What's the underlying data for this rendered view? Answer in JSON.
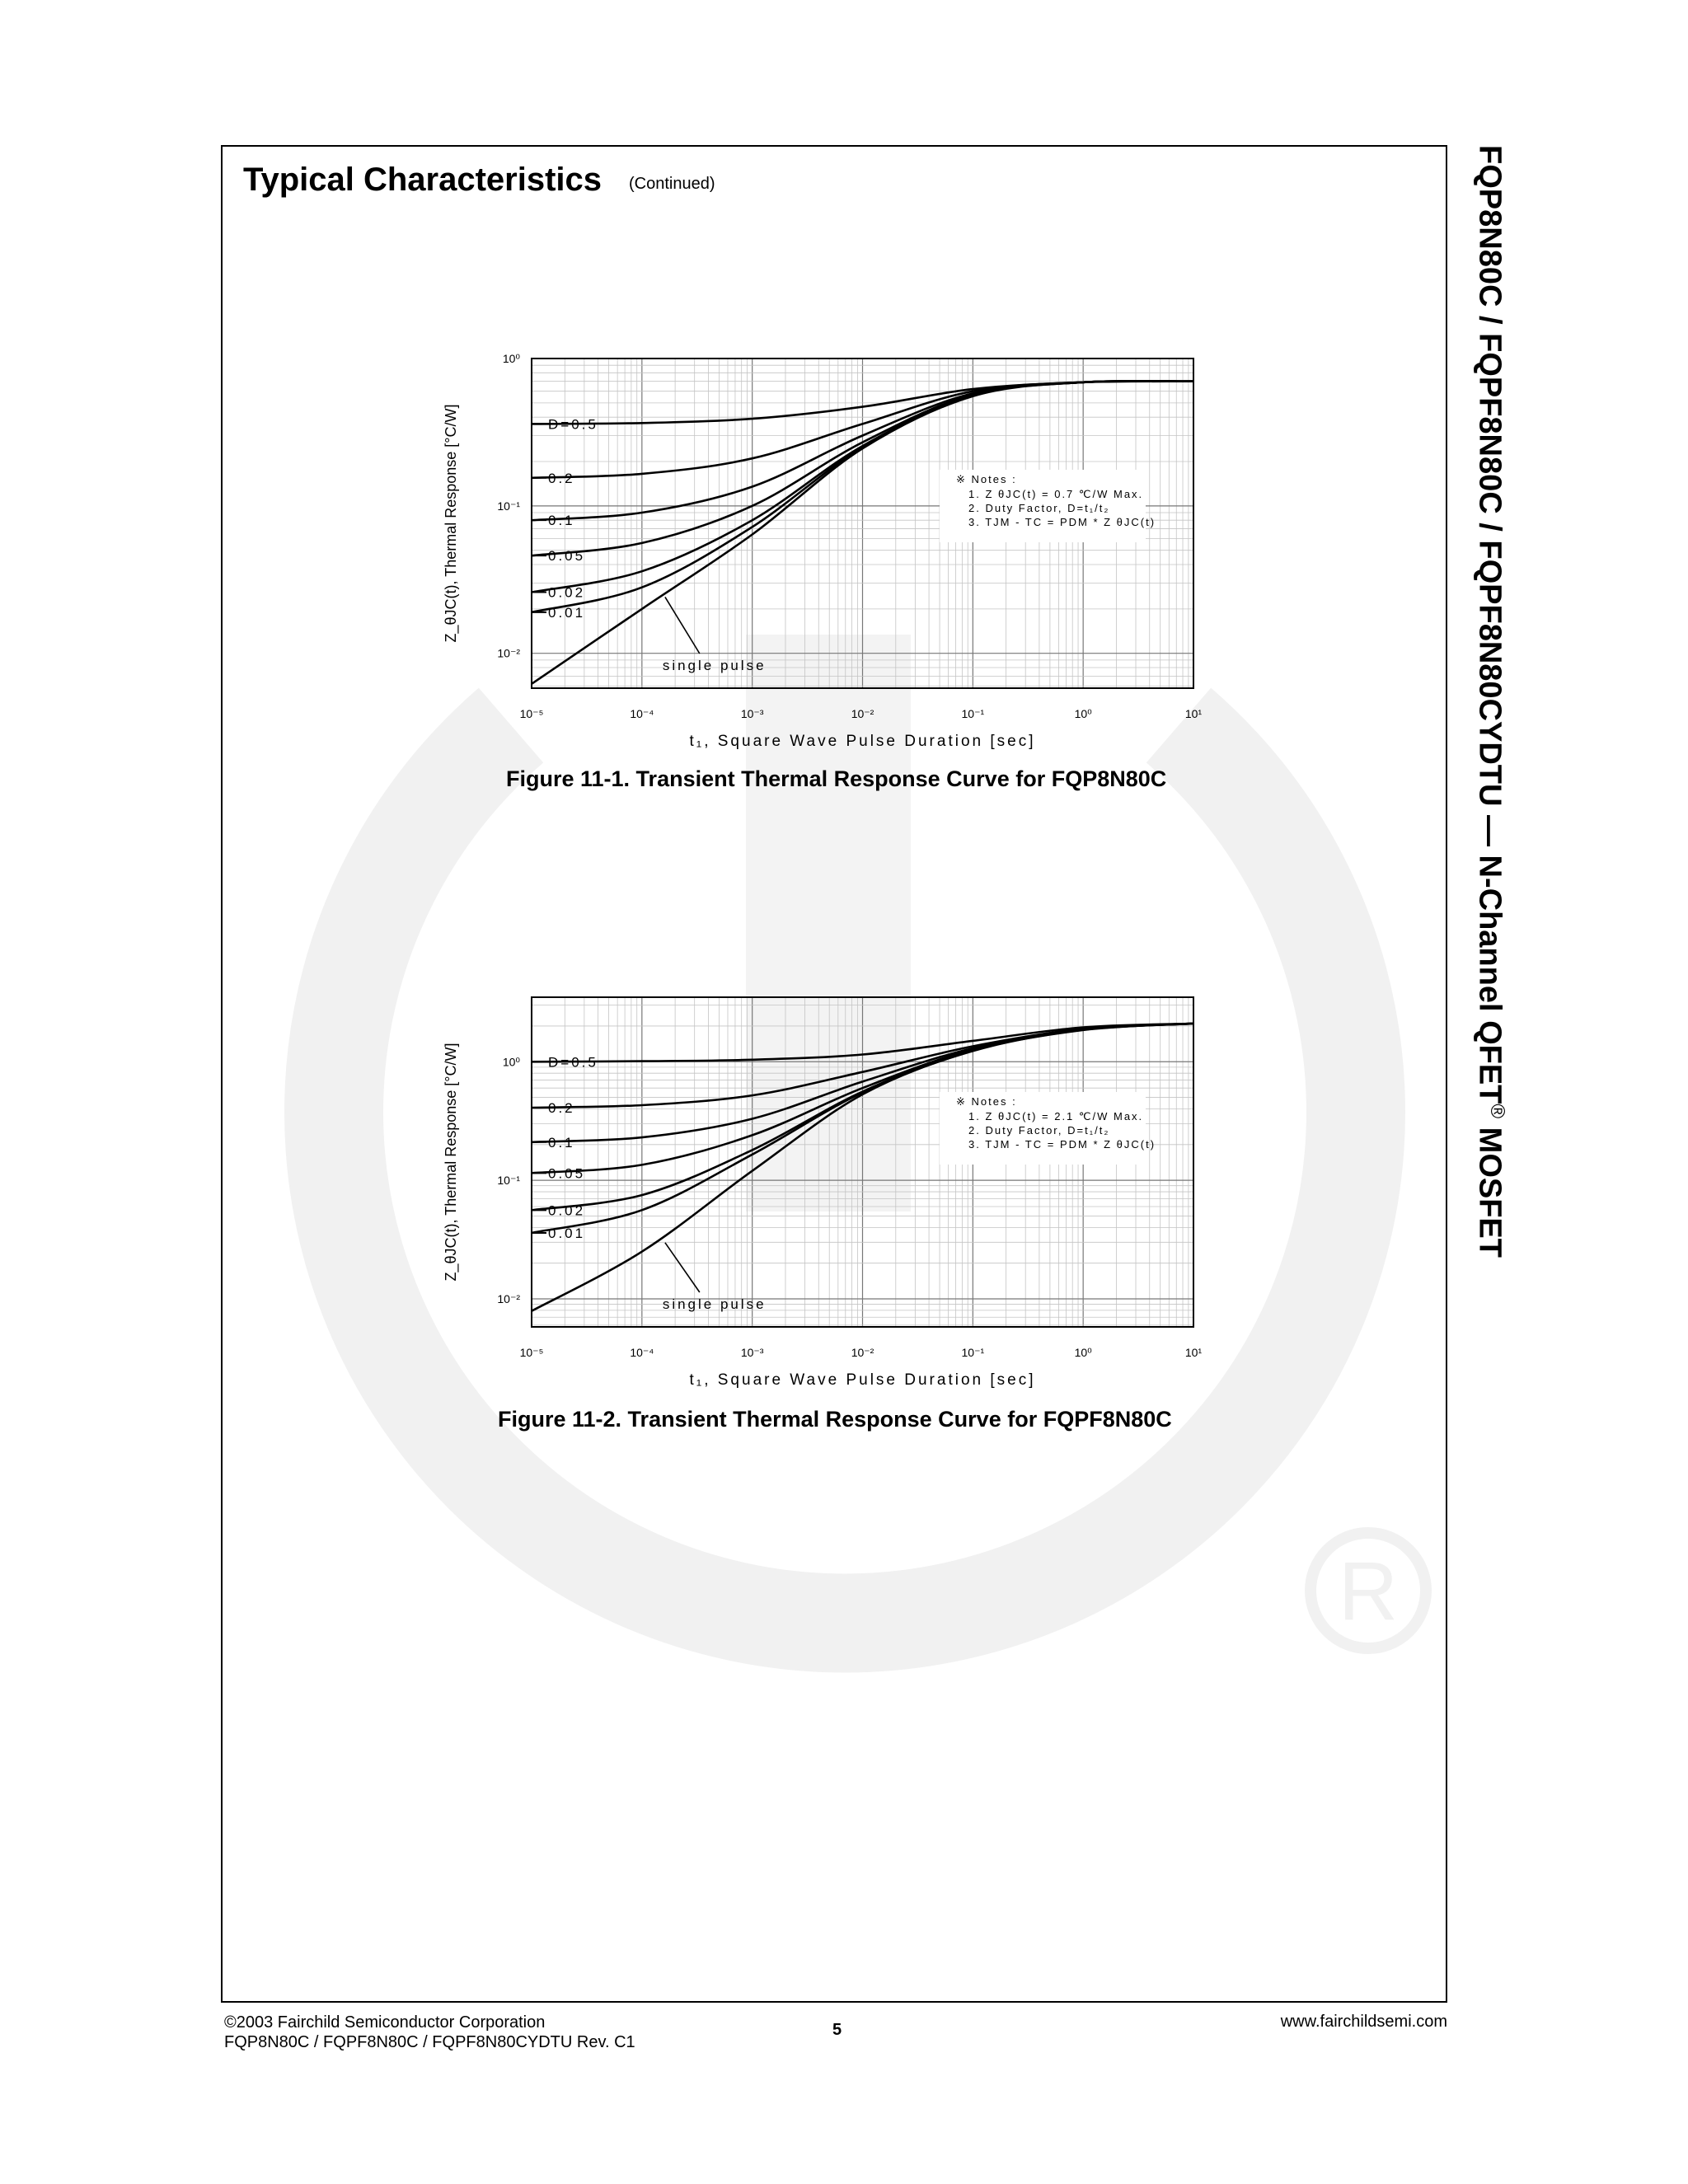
{
  "page": {
    "section_title": "Typical Characteristics",
    "section_subtitle": "(Continued)",
    "side_title": "FQP8N80C / FQPF8N80C / FQPF8N80CYDTU — N-Channel QFET",
    "side_title_mark": "®",
    "side_title_suffix": " MOSFET",
    "footer": {
      "copyright": "©2003 Fairchild Semiconductor Corporation",
      "doc_id": "FQP8N80C / FQPF8N80C / FQPF8N80CYDTU Rev. C1",
      "page_number": "5",
      "website": "www.fairchildsemi.com"
    }
  },
  "chart_data": [
    {
      "type": "line",
      "caption": "Figure 11-1. Transient Thermal Response Curve for FQP8N80C",
      "xlabel": "t₁, Square Wave Pulse Duration [sec]",
      "ylabel": "Z_θJC(t), Thermal Response [°C/W]",
      "x_scale": "log",
      "y_scale": "log",
      "xlim": [
        1e-05,
        10
      ],
      "ylim": [
        0.0058,
        1.0
      ],
      "x_ticks": [
        1e-05,
        0.0001,
        0.001,
        0.01,
        0.1,
        1,
        10
      ],
      "x_tick_labels": [
        "10⁻⁵",
        "10⁻⁴",
        "10⁻³",
        "10⁻²",
        "10⁻¹",
        "10⁰",
        "10¹"
      ],
      "y_ticks": [
        0.01,
        0.1,
        1
      ],
      "y_tick_labels": [
        "10⁻²",
        "10⁻¹",
        "10⁰"
      ],
      "grid": true,
      "notes": {
        "heading": "※  Notes :",
        "lines": [
          "1. Z θJC(t) = 0.7 ℃/W Max.",
          "2. Duty Factor, D=t₁/t₂",
          "3. TJM - TC = PDM * Z θJC(t)"
        ]
      },
      "rth": 0.7,
      "series": [
        {
          "name": "D=0.5",
          "x": [
            1e-05,
            0.0001,
            0.001,
            0.01,
            0.1,
            1,
            10
          ],
          "y": [
            0.36,
            0.365,
            0.39,
            0.47,
            0.62,
            0.69,
            0.7
          ]
        },
        {
          "name": "0.2",
          "x": [
            1e-05,
            0.0001,
            0.001,
            0.01,
            0.1,
            1,
            10
          ],
          "y": [
            0.155,
            0.165,
            0.21,
            0.36,
            0.6,
            0.69,
            0.7
          ]
        },
        {
          "name": "0.1",
          "x": [
            1e-05,
            0.0001,
            0.001,
            0.01,
            0.1,
            1,
            10
          ],
          "y": [
            0.08,
            0.09,
            0.135,
            0.3,
            0.58,
            0.69,
            0.7
          ]
        },
        {
          "name": "0.05",
          "x": [
            1e-05,
            0.0001,
            0.001,
            0.01,
            0.1,
            1,
            10
          ],
          "y": [
            0.046,
            0.056,
            0.1,
            0.27,
            0.57,
            0.69,
            0.7
          ]
        },
        {
          "name": "0.02",
          "x": [
            1e-05,
            0.0001,
            0.001,
            0.01,
            0.1,
            1,
            10
          ],
          "y": [
            0.026,
            0.036,
            0.08,
            0.255,
            0.565,
            0.69,
            0.7
          ]
        },
        {
          "name": "0.01",
          "x": [
            1e-05,
            0.0001,
            0.001,
            0.01,
            0.1,
            1,
            10
          ],
          "y": [
            0.019,
            0.028,
            0.072,
            0.25,
            0.56,
            0.69,
            0.7
          ]
        },
        {
          "name": "single pulse",
          "x": [
            1e-05,
            0.0001,
            0.001,
            0.01,
            0.1,
            1,
            10
          ],
          "y": [
            0.0062,
            0.02,
            0.064,
            0.245,
            0.555,
            0.69,
            0.7
          ]
        }
      ],
      "labels": {
        "d05": "D=0.5",
        "d02": "0.2",
        "d01": "0.1",
        "d005": "0.05",
        "d002": "0.02",
        "d001": "0.01",
        "single": "single pulse"
      }
    },
    {
      "type": "line",
      "caption": "Figure 11-2. Transient Thermal Response Curve for FQPF8N80C",
      "xlabel": "t₁, Square Wave Pulse Duration [sec]",
      "ylabel": "Z_θJC(t), Thermal Response [°C/W]",
      "x_scale": "log",
      "y_scale": "log",
      "xlim": [
        1e-05,
        10
      ],
      "ylim": [
        0.0058,
        3.5
      ],
      "x_ticks": [
        1e-05,
        0.0001,
        0.001,
        0.01,
        0.1,
        1,
        10
      ],
      "x_tick_labels": [
        "10⁻⁵",
        "10⁻⁴",
        "10⁻³",
        "10⁻²",
        "10⁻¹",
        "10⁰",
        "10¹"
      ],
      "y_ticks": [
        0.01,
        0.1,
        1
      ],
      "y_tick_labels": [
        "10⁻²",
        "10⁻¹",
        "10⁰"
      ],
      "grid": true,
      "notes": {
        "heading": "※  Notes :",
        "lines": [
          "1. Z θJC(t) = 2.1 ℃/W Max.",
          "2. Duty Factor, D=t₁/t₂",
          "3. TJM - TC = PDM * Z θJC(t)"
        ]
      },
      "rth": 2.1,
      "series": [
        {
          "name": "D=0.5",
          "x": [
            1e-05,
            0.0001,
            0.001,
            0.01,
            0.1,
            1,
            10
          ],
          "y": [
            1.0,
            1.01,
            1.04,
            1.15,
            1.5,
            1.95,
            2.1
          ]
        },
        {
          "name": "0.2",
          "x": [
            1e-05,
            0.0001,
            0.001,
            0.01,
            0.1,
            1,
            10
          ],
          "y": [
            0.41,
            0.43,
            0.52,
            0.82,
            1.35,
            1.9,
            2.1
          ]
        },
        {
          "name": "0.1",
          "x": [
            1e-05,
            0.0001,
            0.001,
            0.01,
            0.1,
            1,
            10
          ],
          "y": [
            0.21,
            0.23,
            0.33,
            0.68,
            1.3,
            1.88,
            2.1
          ]
        },
        {
          "name": "0.05",
          "x": [
            1e-05,
            0.0001,
            0.001,
            0.01,
            0.1,
            1,
            10
          ],
          "y": [
            0.115,
            0.135,
            0.24,
            0.6,
            1.27,
            1.87,
            2.1
          ]
        },
        {
          "name": "0.02",
          "x": [
            1e-05,
            0.0001,
            0.001,
            0.01,
            0.1,
            1,
            10
          ],
          "y": [
            0.056,
            0.075,
            0.18,
            0.56,
            1.25,
            1.86,
            2.1
          ]
        },
        {
          "name": "0.01",
          "x": [
            1e-05,
            0.0001,
            0.001,
            0.01,
            0.1,
            1,
            10
          ],
          "y": [
            0.036,
            0.056,
            0.165,
            0.55,
            1.24,
            1.86,
            2.1
          ]
        },
        {
          "name": "single pulse",
          "x": [
            1e-05,
            0.0001,
            0.001,
            0.01,
            0.1,
            1,
            10
          ],
          "y": [
            0.0079,
            0.025,
            0.12,
            0.53,
            1.23,
            1.85,
            2.1
          ]
        }
      ],
      "labels": {
        "d05": "D=0.5",
        "d02": "0.2",
        "d01": "0.1",
        "d005": "0.05",
        "d002": "0.02",
        "d001": "0.01",
        "single": "single pulse"
      }
    }
  ]
}
